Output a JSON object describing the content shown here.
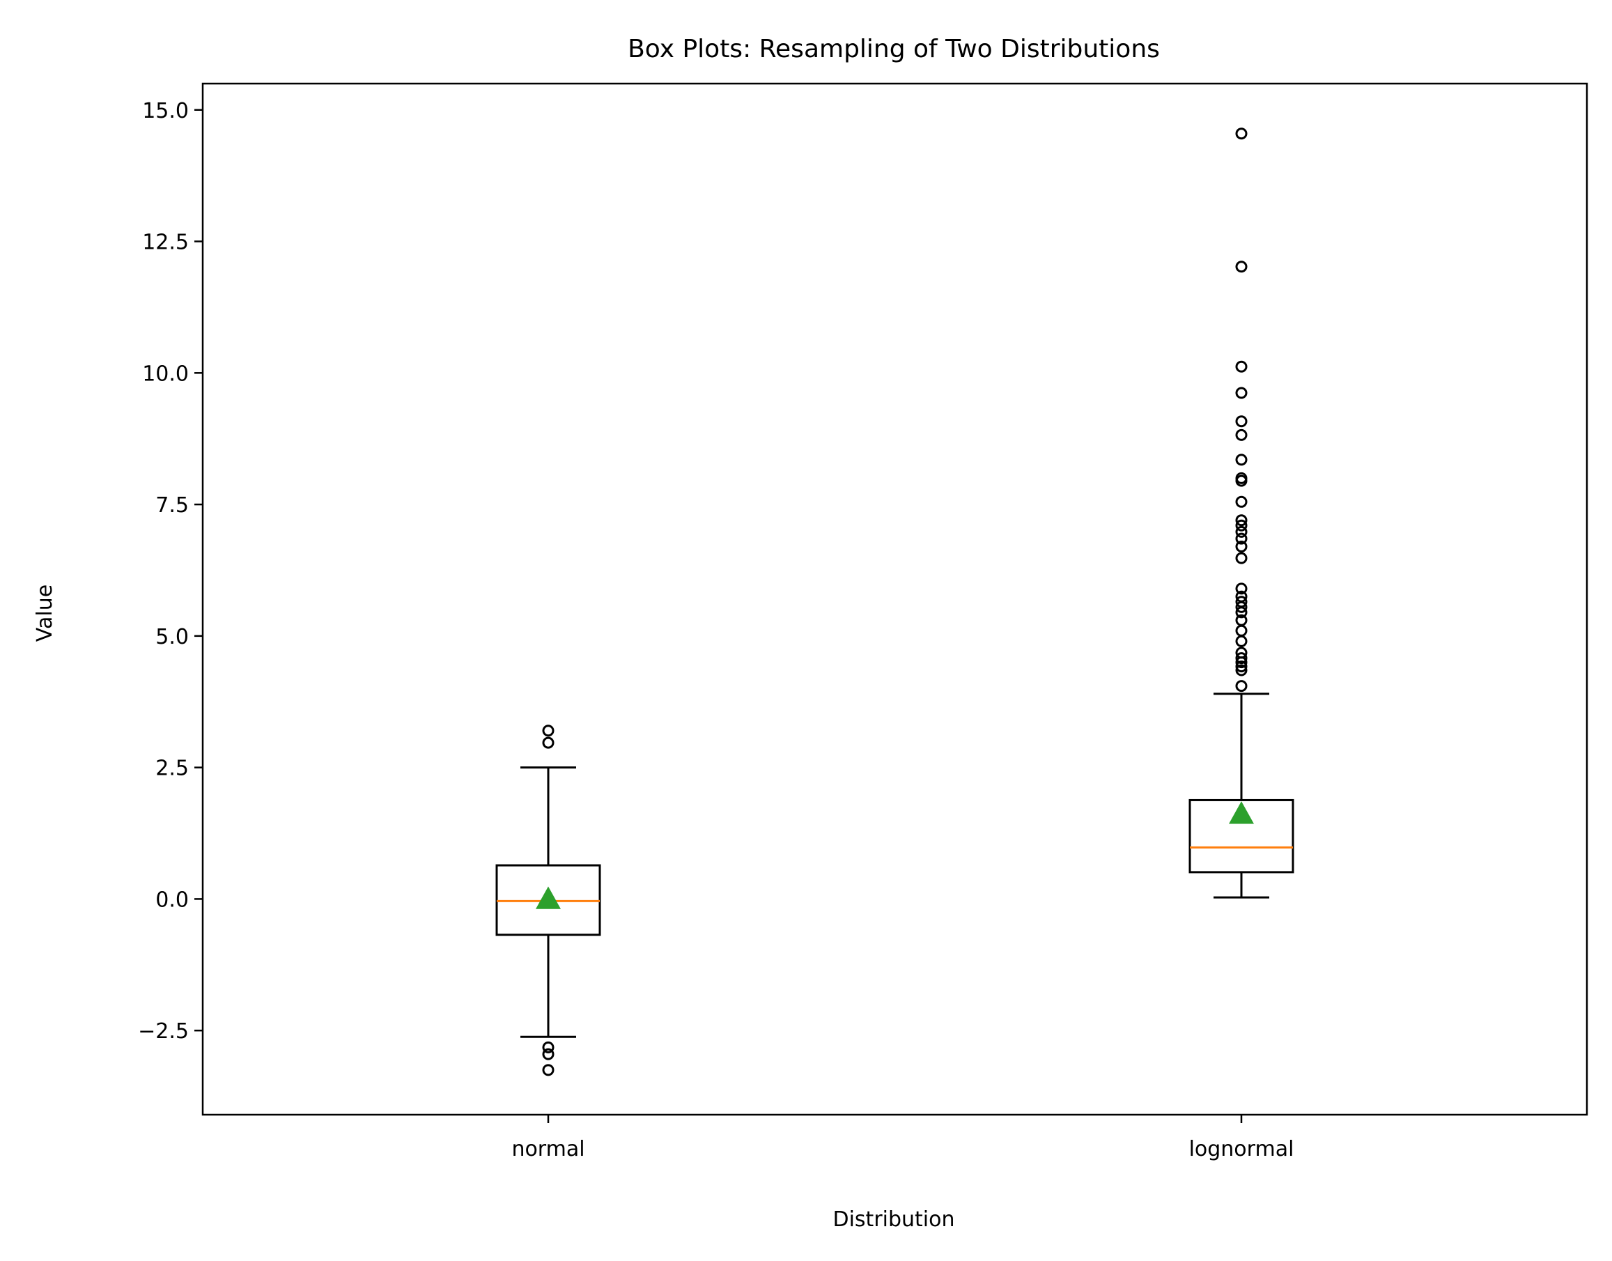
{
  "chart_data": {
    "type": "box",
    "title": "Box Plots: Resampling of Two Distributions",
    "xlabel": "Distribution",
    "ylabel": "Value",
    "ylim": [
      -4.1,
      15.5
    ],
    "yticks": [
      -2.5,
      0.0,
      2.5,
      5.0,
      7.5,
      10.0,
      12.5,
      15.0
    ],
    "ytick_labels": [
      "−2.5",
      "0.0",
      "2.5",
      "5.0",
      "7.5",
      "10.0",
      "12.5",
      "15.0"
    ],
    "grid": false,
    "colors": {
      "box": "#000000",
      "median": "#ff7f0e",
      "mean": "#2ca02c",
      "flier": "#000000"
    },
    "categories": [
      "normal",
      "lognormal"
    ],
    "boxes": [
      {
        "name": "normal",
        "whisker_low": -2.62,
        "q1": -0.68,
        "median": -0.04,
        "q3": 0.64,
        "whisker_high": 2.5,
        "mean": 0.0,
        "fliers": [
          3.2,
          2.97,
          -2.82,
          -2.95,
          -3.25
        ]
      },
      {
        "name": "lognormal",
        "whisker_low": 0.03,
        "q1": 0.51,
        "median": 0.98,
        "q3": 1.88,
        "whisker_high": 3.9,
        "mean": 1.62,
        "fliers": [
          4.05,
          4.35,
          4.42,
          4.5,
          4.58,
          4.68,
          4.9,
          5.1,
          5.3,
          5.45,
          5.55,
          5.65,
          5.75,
          5.9,
          6.48,
          6.7,
          6.85,
          6.98,
          7.1,
          7.2,
          7.55,
          7.95,
          8.0,
          8.35,
          8.82,
          9.08,
          9.62,
          10.12,
          12.02,
          14.55
        ]
      }
    ]
  }
}
